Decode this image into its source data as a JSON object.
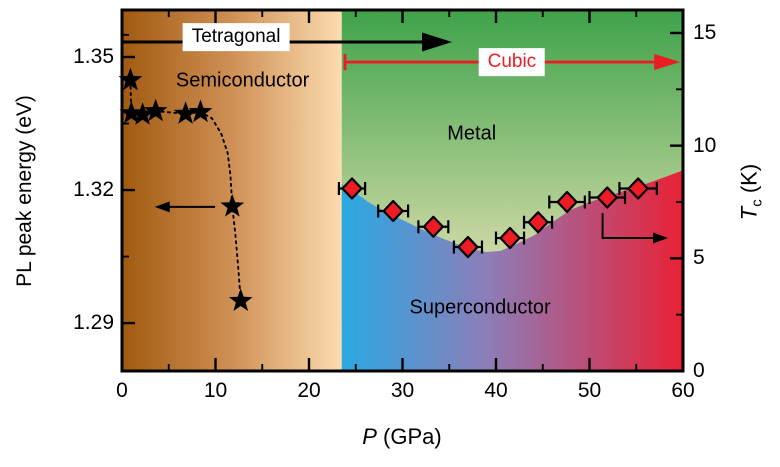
{
  "figure": {
    "background": "#ffffff"
  },
  "chart_data": {
    "type": "scatter",
    "title": "",
    "description": "Pressure-temperature phase diagram: PL peak energy (black stars, left axis) and superconducting transition temperature Tc (red diamonds, right axis) versus pressure",
    "x_axis": {
      "label_var": "P",
      "label_unit": " (GPa)",
      "range": [
        0,
        60
      ],
      "major_ticks": [
        0,
        10,
        20,
        30,
        40,
        50,
        60
      ],
      "major_tick_labels": [
        "0",
        "10",
        "20",
        "30",
        "40",
        "50",
        "60"
      ],
      "minor_ticks": [
        5,
        15,
        25,
        35,
        45,
        55
      ]
    },
    "left_axis": {
      "label": "PL peak energy (eV)",
      "range": [
        1.2792,
        1.3606
      ],
      "major_ticks": [
        1.29,
        1.32,
        1.35
      ],
      "major_tick_labels": [
        "1.29",
        "1.32",
        "1.35"
      ],
      "minor_ticks": [
        1.305,
        1.335,
        1.355
      ]
    },
    "right_axis": {
      "label_var": "T",
      "label_sub": "c",
      "label_unit": " (K)",
      "range": [
        0,
        16.02
      ],
      "major_ticks": [
        0,
        5,
        10,
        15
      ],
      "major_tick_labels": [
        "0",
        "5",
        "10",
        "15"
      ],
      "minor_ticks": [
        2.5,
        7.5,
        12.5
      ]
    },
    "grid": false,
    "regions": [
      {
        "id": "semiconductor",
        "label": "Semiconductor",
        "P_range": [
          0,
          23.5
        ],
        "gradient_dir": "horizontal",
        "gradient_stops": [
          [
            "0",
            "#a15a10"
          ],
          [
            "0.5",
            "#cf9055"
          ],
          [
            "1",
            "#fcdcb0"
          ]
        ],
        "label_P": 12.9,
        "label_E": 1.3446
      },
      {
        "id": "metal",
        "label": "Metal",
        "P_range": [
          23.5,
          60
        ],
        "gradient_dir": "vertical",
        "gradient_stops": [
          [
            "0",
            "#3fa24a"
          ],
          [
            "0.68",
            "#cdd9a5"
          ],
          [
            "1",
            "#e2e7bd"
          ]
        ],
        "label_P": 37.4,
        "label_K": 10.5
      },
      {
        "id": "superconductor",
        "label": "Superconductor",
        "P_range": [
          23.5,
          60
        ],
        "gradient_dir": "horizontal",
        "gradient_stops": [
          [
            "0",
            "#2aa9e2"
          ],
          [
            "0.42",
            "#8b7eba"
          ],
          [
            "1",
            "#e92136"
          ]
        ],
        "label_P": 38.3,
        "label_K": 2.8
      }
    ],
    "phase_boundary_P": 23.5,
    "sc_dome_boundary": [
      [
        23.5,
        8.3
      ],
      [
        25,
        7.9
      ],
      [
        26.5,
        7.45
      ],
      [
        28.5,
        7.0
      ],
      [
        30.5,
        6.6
      ],
      [
        32.5,
        6.2
      ],
      [
        34.5,
        5.85
      ],
      [
        36,
        5.6
      ],
      [
        37.5,
        5.4
      ],
      [
        39,
        5.28
      ],
      [
        40.5,
        5.33
      ],
      [
        42,
        5.6
      ],
      [
        44,
        6.0
      ],
      [
        46,
        6.6
      ],
      [
        48,
        7.15
      ],
      [
        50,
        7.5
      ],
      [
        52,
        7.75
      ],
      [
        54,
        8.05
      ],
      [
        56,
        8.3
      ],
      [
        58,
        8.6
      ],
      [
        60,
        8.9
      ]
    ],
    "series": {
      "pl_peak_energy": {
        "name": "PL peak energy",
        "marker": "star",
        "color": "#000000",
        "line_style": "dotted",
        "points_P": [
          0.9,
          1.0,
          2.2,
          3.6,
          6.8,
          8.4,
          11.8,
          12.7
        ],
        "points_eV": [
          1.3448,
          1.3373,
          1.337,
          1.3378,
          1.3372,
          1.3376,
          1.3163,
          1.295
        ],
        "curve_P": [
          0.9,
          1.0,
          2.2,
          3.6,
          6.8,
          8.4,
          9.6,
          10.6,
          11.3,
          11.6,
          11.8,
          12.15,
          12.45,
          12.7
        ],
        "curve_eV": [
          1.3448,
          1.3373,
          1.337,
          1.3378,
          1.3372,
          1.3376,
          1.3362,
          1.3328,
          1.3283,
          1.3232,
          1.3163,
          1.3095,
          1.302,
          1.295
        ]
      },
      "tc": {
        "name": "Tc",
        "marker": "diamond",
        "fill": "#ee1b24",
        "stroke": "#000000",
        "points_P": [
          24.6,
          29.0,
          33.3,
          37.0,
          41.5,
          44.5,
          47.6,
          51.9,
          55.2
        ],
        "points_K": [
          8.1,
          7.1,
          6.4,
          5.5,
          5.9,
          6.6,
          7.5,
          7.7,
          8.1
        ],
        "P_err": [
          1.4,
          1.6,
          1.6,
          1.5,
          1.5,
          1.5,
          1.9,
          1.9,
          2.0
        ]
      }
    },
    "annotations": {
      "tetragonal": {
        "label": "Tetragonal",
        "color": "#000000",
        "y_K": 14.6,
        "P_from": 0,
        "P_to": 35.3,
        "box_P": 12.2,
        "box_K": 14.83
      },
      "cubic": {
        "label": "Cubic",
        "color": "#ec1c24",
        "y_K": 13.71,
        "P_from": 23.85,
        "P_to": 59.7,
        "box_P": 41.7,
        "box_K": 13.71
      },
      "stars_axis_arrow": {
        "direction": "left",
        "E": 1.3162,
        "P_from": 9.95,
        "P_to": 3.5
      },
      "tc_axis_arrow": {
        "direction": "right-elbow",
        "P_start": 51.4,
        "K_start": 7.0,
        "K_corner": 5.9,
        "P_end": 58.4
      }
    }
  }
}
